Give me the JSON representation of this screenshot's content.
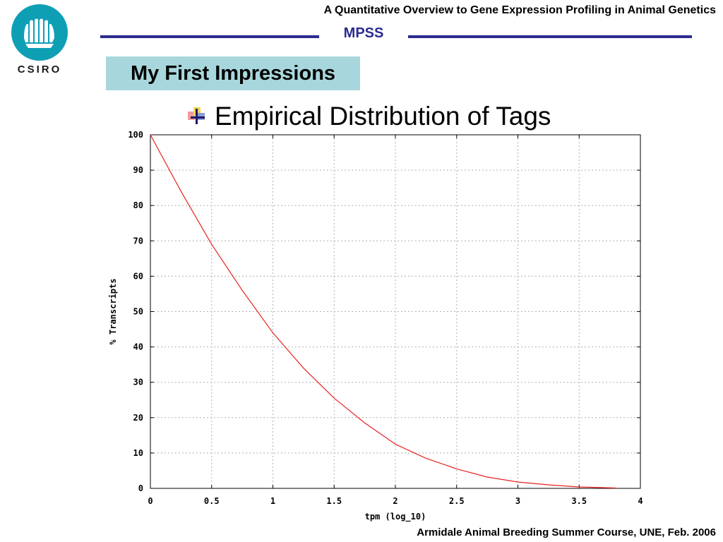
{
  "logo": {
    "text": "CSIRO"
  },
  "header": {
    "course_title": "A Quantitative Overview to Gene Expression Profiling in Animal Genetics",
    "section": "MPSS",
    "rule_color": "#2b2b8f"
  },
  "slide": {
    "heading": "My First Impressions",
    "heading_bg": "#a7d7dc",
    "bullet": {
      "icon": "bullet-cross-icon",
      "text": "Empirical Distribution of Tags"
    }
  },
  "footer": {
    "text": "Armidale Animal Breeding Summer Course, UNE, Feb. 2006"
  },
  "chart_data": {
    "type": "line",
    "title": "",
    "xlabel": "tpm (log_10)",
    "ylabel": "% Transcripts",
    "xlim": [
      0,
      4
    ],
    "ylim": [
      0,
      100
    ],
    "x_ticks": [
      "0",
      "0.5",
      "1",
      "1.5",
      "2",
      "2.5",
      "3",
      "3.5",
      "4"
    ],
    "y_ticks": [
      "0",
      "10",
      "20",
      "30",
      "40",
      "50",
      "60",
      "70",
      "80",
      "90",
      "100"
    ],
    "grid": true,
    "line_color": "#e8221f",
    "series": [
      {
        "x": [
          0,
          0.25,
          0.5,
          0.75,
          1.0,
          1.25,
          1.5,
          1.75,
          2.0,
          2.25,
          2.5,
          2.75,
          3.0,
          3.25,
          3.5,
          3.8
        ],
        "y": [
          100,
          84,
          69,
          56,
          44,
          34,
          25.5,
          18.5,
          12.5,
          8.5,
          5.5,
          3.2,
          1.8,
          1.0,
          0.4,
          0.1
        ]
      }
    ]
  }
}
